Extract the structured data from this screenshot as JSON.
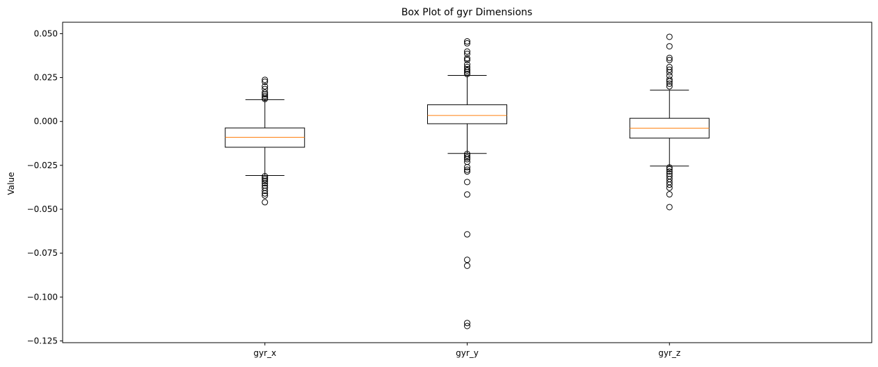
{
  "chart_data": {
    "type": "box",
    "title": "Box Plot of gyr Dimensions",
    "xlabel": "",
    "ylabel": "Value",
    "ylim": [
      -0.126,
      0.0565
    ],
    "yticks": [
      0.05,
      0.025,
      0.0,
      -0.025,
      -0.05,
      -0.075,
      -0.1,
      -0.125
    ],
    "ytick_labels": [
      "0.050",
      "0.025",
      "0.000",
      "−0.025",
      "−0.050",
      "−0.075",
      "−0.100",
      "−0.125"
    ],
    "grid": false,
    "colors": {
      "box": "#000000",
      "median": "#ff7f0e",
      "flier": "#000000"
    },
    "categories": [
      "gyr_x",
      "gyr_y",
      "gyr_z"
    ],
    "boxes": [
      {
        "label": "gyr_x",
        "whisker_low": -0.0308,
        "q1": -0.0147,
        "median": -0.009,
        "q3": -0.0037,
        "whisker_high": 0.0124,
        "fliers": [
          0.0237,
          0.0226,
          0.02,
          0.0185,
          0.0165,
          0.0155,
          0.0145,
          0.0135,
          0.0128,
          -0.0312,
          -0.0322,
          -0.033,
          -0.034,
          -0.0352,
          -0.0365,
          -0.0378,
          -0.0395,
          -0.041,
          -0.0422,
          -0.046
        ]
      },
      {
        "label": "gyr_y",
        "whisker_low": -0.0182,
        "q1": -0.0013,
        "median": 0.0034,
        "q3": 0.0095,
        "whisker_high": 0.0262,
        "fliers": [
          0.0456,
          0.0445,
          0.0398,
          0.0385,
          0.036,
          0.035,
          0.0325,
          0.031,
          0.0298,
          0.029,
          0.028,
          0.027,
          -0.0185,
          -0.0195,
          -0.0205,
          -0.0215,
          -0.023,
          -0.026,
          -0.0275,
          -0.0285,
          -0.0345,
          -0.0416,
          -0.0643,
          -0.0788,
          -0.0822,
          -0.1148,
          -0.1165
        ]
      },
      {
        "label": "gyr_z",
        "whisker_low": -0.0254,
        "q1": -0.0095,
        "median": -0.0038,
        "q3": 0.0018,
        "whisker_high": 0.0178,
        "fliers": [
          0.0482,
          0.0428,
          0.0362,
          0.035,
          0.031,
          0.0295,
          0.028,
          0.026,
          0.0238,
          0.0228,
          0.0215,
          0.02,
          -0.0262,
          -0.0272,
          -0.0285,
          -0.0298,
          -0.0312,
          -0.0328,
          -0.0345,
          -0.036,
          -0.0378,
          -0.0415,
          -0.0488
        ]
      }
    ]
  }
}
